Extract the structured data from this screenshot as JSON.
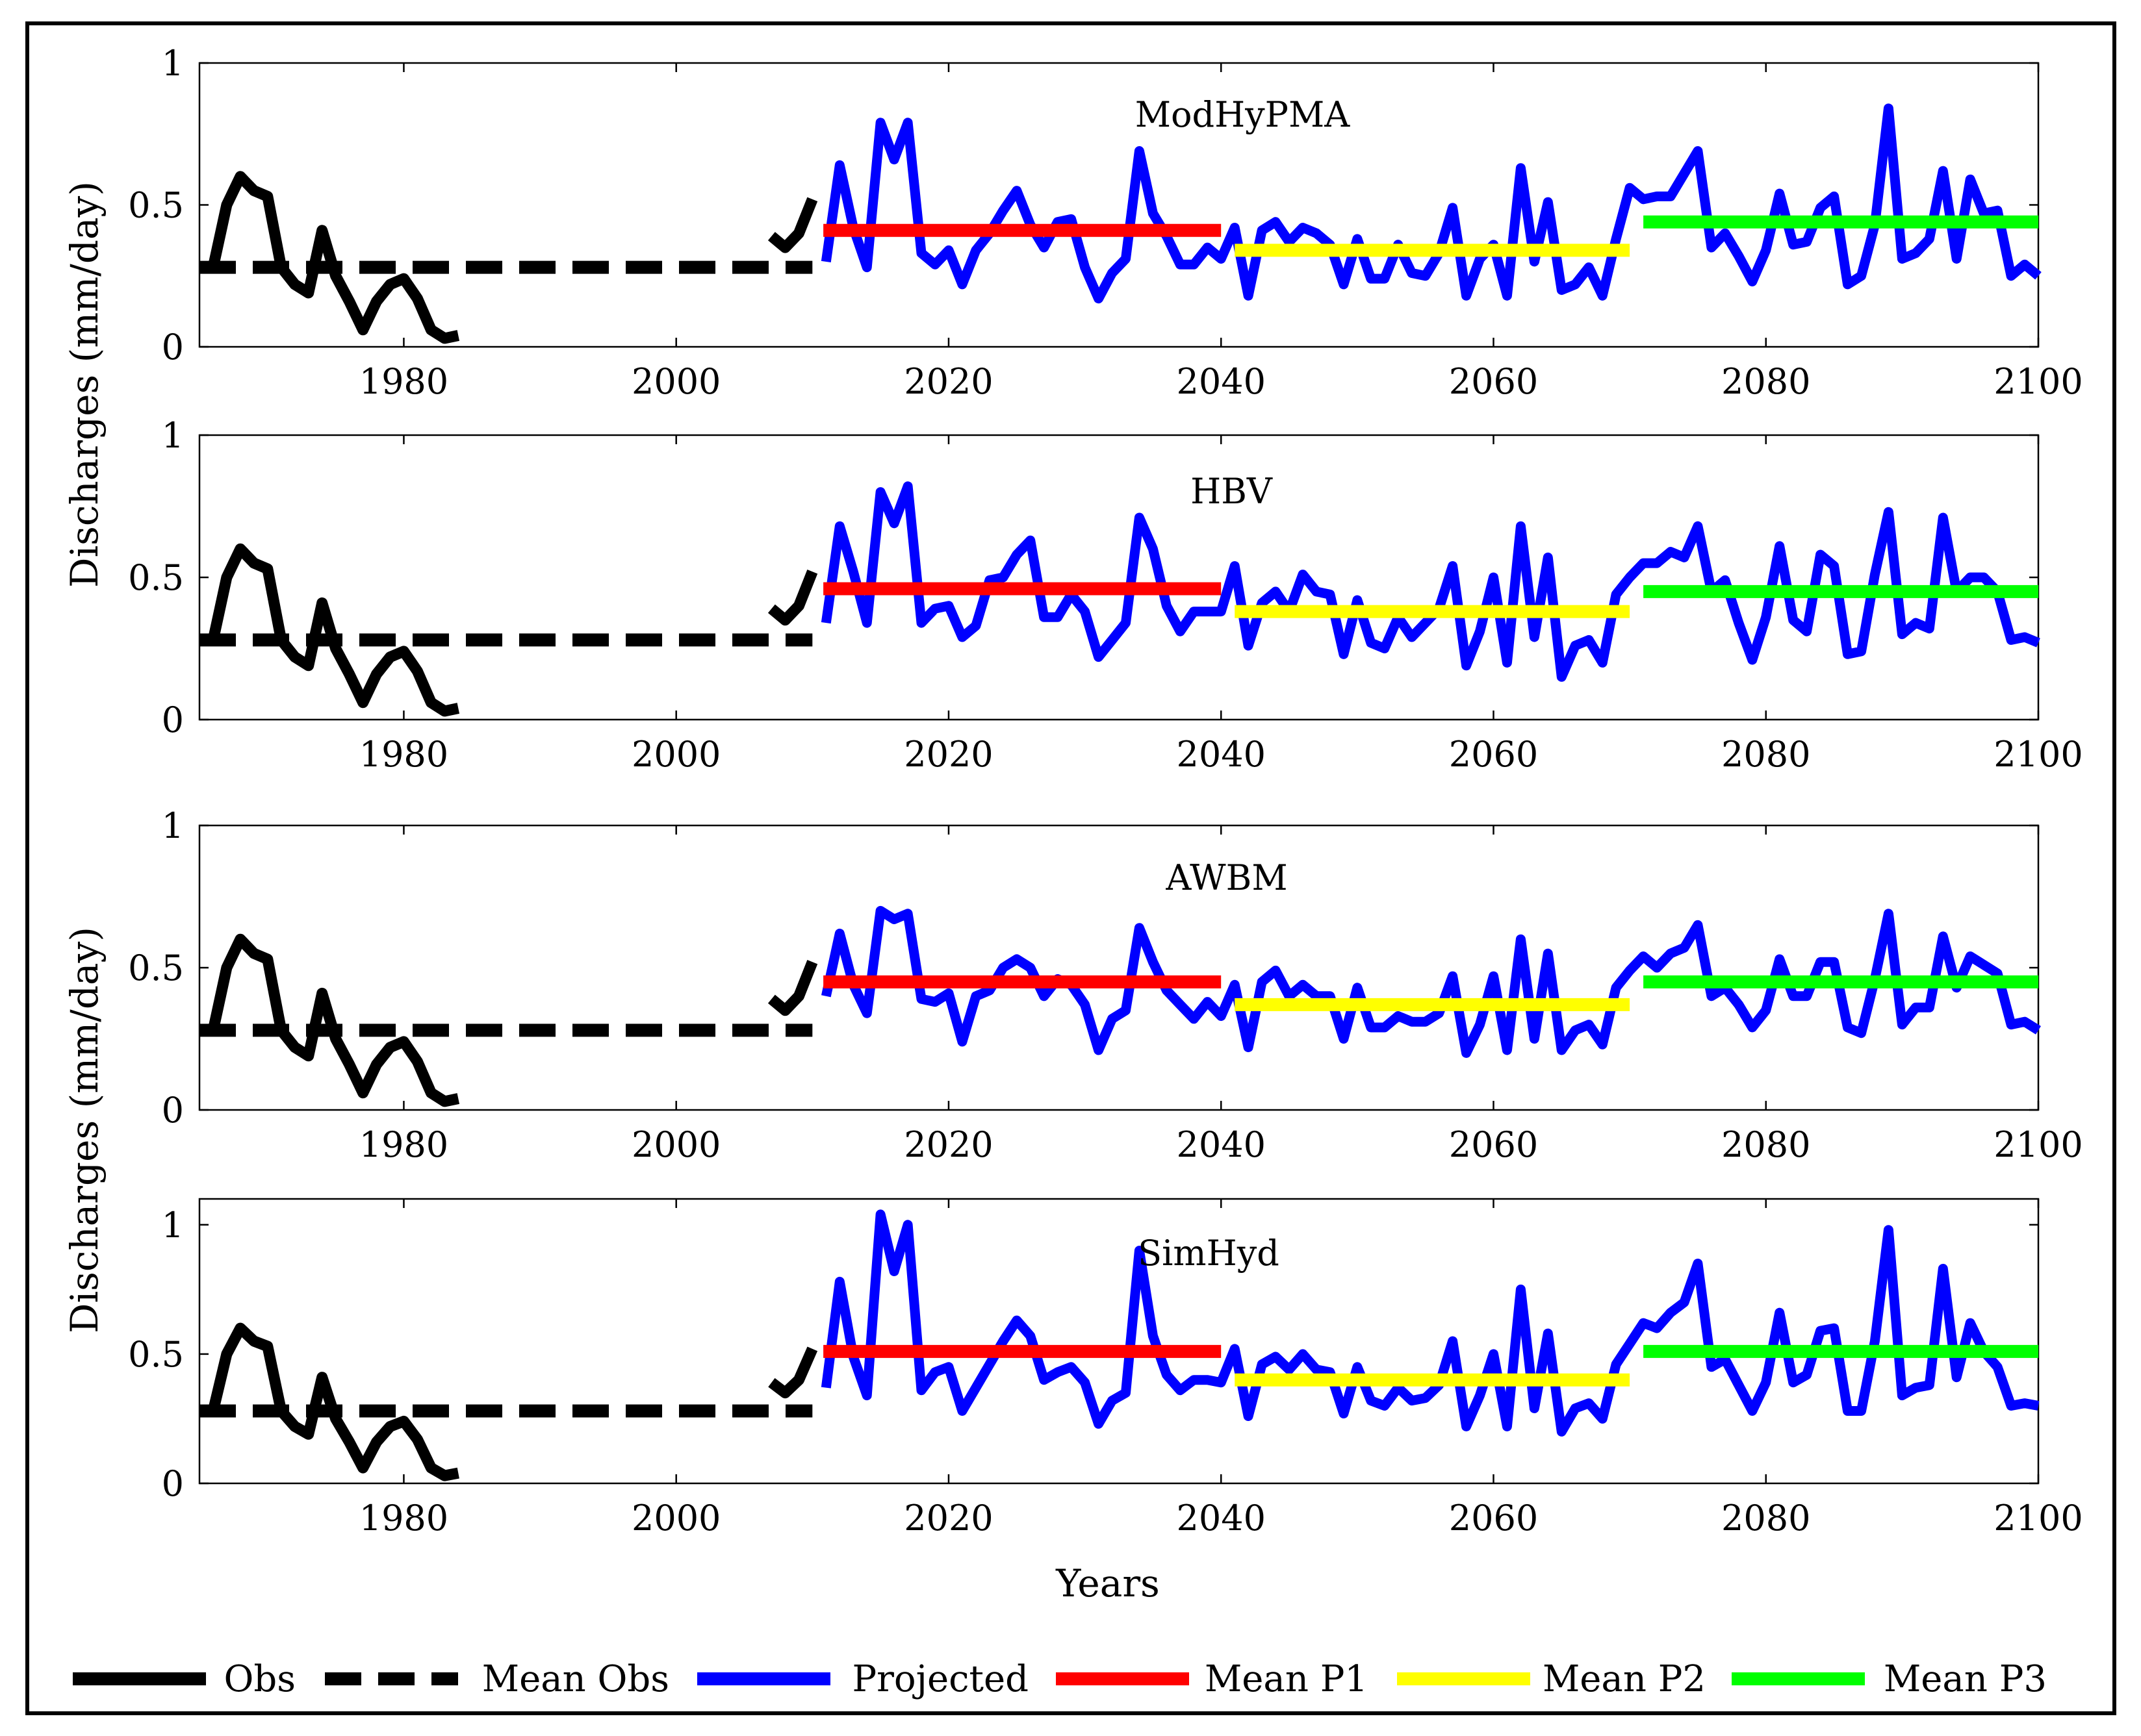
{
  "chart_data": {
    "type": "line",
    "xlabel": "Years",
    "ylabel": "Discharges (mm/day)",
    "xlim": [
      1965,
      2100
    ],
    "xticks": [
      1980,
      2000,
      2020,
      2040,
      2060,
      2080,
      2100
    ],
    "legend_position": "bottom",
    "legend": [
      {
        "key": "obs",
        "label": "Obs",
        "color": "#000000",
        "dashed": false
      },
      {
        "key": "mean_obs",
        "label": "Mean Obs",
        "color": "#000000",
        "dashed": true
      },
      {
        "key": "projected",
        "label": "Projected",
        "color": "#0000ff",
        "dashed": false
      },
      {
        "key": "mean_p1",
        "label": "Mean P1",
        "color": "#ff0000",
        "dashed": false
      },
      {
        "key": "mean_p2",
        "label": "Mean P2",
        "color": "#ffff00",
        "dashed": false
      },
      {
        "key": "mean_p3",
        "label": "Mean P3",
        "color": "#00ff00",
        "dashed": false
      }
    ],
    "observed": {
      "x": [
        1965,
        1966,
        1967,
        1968,
        1969,
        1970,
        1971,
        1972,
        1973,
        1974,
        1975,
        1976,
        1977,
        1978,
        1979,
        1980,
        1981,
        1982,
        1983,
        1984
      ],
      "values": [
        0.28,
        0.28,
        0.5,
        0.6,
        0.55,
        0.53,
        0.28,
        0.22,
        0.19,
        0.41,
        0.25,
        0.16,
        0.06,
        0.16,
        0.22,
        0.24,
        0.17,
        0.06,
        0.03,
        0.04
      ],
      "late_x": [
        2007,
        2008,
        2009,
        2010
      ],
      "late_values": [
        0.39,
        0.35,
        0.4,
        0.52
      ],
      "mean": 0.28,
      "mean_range": [
        1965,
        2010
      ]
    },
    "panels": [
      {
        "title": "ModHyPMA",
        "ylim": [
          0,
          1
        ],
        "yticks": [
          0,
          0.5,
          1
        ],
        "ytick_labels": [
          "0",
          "0.5",
          "1"
        ],
        "projected": [
          0.3,
          0.64,
          0.42,
          0.28,
          0.79,
          0.66,
          0.79,
          0.33,
          0.29,
          0.34,
          0.22,
          0.34,
          0.4,
          0.48,
          0.55,
          0.43,
          0.35,
          0.44,
          0.45,
          0.28,
          0.17,
          0.26,
          0.31,
          0.69,
          0.47,
          0.39,
          0.29,
          0.29,
          0.35,
          0.31,
          0.42,
          0.18,
          0.41,
          0.44,
          0.37,
          0.42,
          0.4,
          0.36,
          0.22,
          0.38,
          0.24,
          0.24,
          0.36,
          0.26,
          0.25,
          0.33,
          0.49,
          0.18,
          0.31,
          0.36,
          0.18,
          0.63,
          0.3,
          0.51,
          0.2,
          0.22,
          0.28,
          0.18,
          0.38,
          0.56,
          0.52,
          0.53,
          0.53,
          0.61,
          0.69,
          0.35,
          0.4,
          0.32,
          0.23,
          0.34,
          0.54,
          0.36,
          0.37,
          0.49,
          0.53,
          0.22,
          0.25,
          0.43,
          0.84,
          0.31,
          0.33,
          0.38,
          0.62,
          0.31,
          0.59,
          0.47,
          0.48,
          0.25,
          0.29,
          0.25
        ],
        "mean_p1": 0.41,
        "mean_p2": 0.34,
        "mean_p3": 0.44
      },
      {
        "title": "HBV",
        "ylim": [
          0,
          1
        ],
        "yticks": [
          0,
          0.5,
          1
        ],
        "ytick_labels": [
          "0",
          "0.5",
          "1"
        ],
        "projected": [
          0.34,
          0.68,
          0.52,
          0.34,
          0.8,
          0.69,
          0.82,
          0.34,
          0.39,
          0.4,
          0.29,
          0.33,
          0.49,
          0.5,
          0.58,
          0.63,
          0.36,
          0.36,
          0.44,
          0.38,
          0.22,
          0.28,
          0.34,
          0.71,
          0.6,
          0.4,
          0.31,
          0.38,
          0.38,
          0.38,
          0.54,
          0.26,
          0.41,
          0.45,
          0.38,
          0.51,
          0.45,
          0.44,
          0.23,
          0.42,
          0.27,
          0.25,
          0.36,
          0.29,
          0.34,
          0.39,
          0.54,
          0.19,
          0.31,
          0.5,
          0.2,
          0.68,
          0.29,
          0.57,
          0.15,
          0.26,
          0.28,
          0.2,
          0.44,
          0.5,
          0.55,
          0.55,
          0.59,
          0.57,
          0.68,
          0.45,
          0.49,
          0.34,
          0.21,
          0.36,
          0.61,
          0.35,
          0.31,
          0.58,
          0.54,
          0.23,
          0.24,
          0.51,
          0.73,
          0.3,
          0.34,
          0.32,
          0.71,
          0.45,
          0.5,
          0.5,
          0.45,
          0.28,
          0.29,
          0.27
        ],
        "mean_p1": 0.46,
        "mean_p2": 0.38,
        "mean_p3": 0.45
      },
      {
        "title": "AWBM",
        "ylim": [
          0,
          1
        ],
        "yticks": [
          0,
          0.5,
          1
        ],
        "ytick_labels": [
          "0",
          "0.5",
          "1"
        ],
        "projected": [
          0.4,
          0.62,
          0.44,
          0.34,
          0.7,
          0.67,
          0.69,
          0.39,
          0.38,
          0.41,
          0.24,
          0.4,
          0.42,
          0.5,
          0.53,
          0.5,
          0.4,
          0.46,
          0.44,
          0.37,
          0.21,
          0.32,
          0.35,
          0.64,
          0.52,
          0.42,
          0.37,
          0.32,
          0.38,
          0.33,
          0.44,
          0.22,
          0.45,
          0.49,
          0.4,
          0.44,
          0.4,
          0.4,
          0.25,
          0.43,
          0.29,
          0.29,
          0.33,
          0.31,
          0.31,
          0.34,
          0.47,
          0.2,
          0.3,
          0.47,
          0.21,
          0.6,
          0.25,
          0.55,
          0.21,
          0.28,
          0.3,
          0.23,
          0.43,
          0.49,
          0.54,
          0.5,
          0.55,
          0.57,
          0.65,
          0.4,
          0.43,
          0.37,
          0.29,
          0.35,
          0.53,
          0.4,
          0.4,
          0.52,
          0.52,
          0.29,
          0.27,
          0.46,
          0.69,
          0.3,
          0.36,
          0.36,
          0.61,
          0.43,
          0.54,
          0.51,
          0.48,
          0.3,
          0.31,
          0.28
        ],
        "mean_p1": 0.45,
        "mean_p2": 0.37,
        "mean_p3": 0.45
      },
      {
        "title": "SimHyd",
        "ylim": [
          0,
          1.1
        ],
        "yticks": [
          0,
          0.5,
          1
        ],
        "ytick_labels": [
          "0",
          "0.5",
          "1"
        ],
        "projected": [
          0.37,
          0.78,
          0.49,
          0.34,
          1.04,
          0.82,
          1.0,
          0.36,
          0.43,
          0.45,
          0.28,
          0.37,
          0.46,
          0.55,
          0.63,
          0.57,
          0.4,
          0.43,
          0.45,
          0.39,
          0.23,
          0.32,
          0.35,
          0.9,
          0.57,
          0.42,
          0.36,
          0.4,
          0.4,
          0.39,
          0.52,
          0.26,
          0.46,
          0.49,
          0.44,
          0.5,
          0.44,
          0.43,
          0.27,
          0.45,
          0.32,
          0.3,
          0.37,
          0.32,
          0.33,
          0.38,
          0.55,
          0.22,
          0.34,
          0.5,
          0.22,
          0.75,
          0.29,
          0.58,
          0.2,
          0.29,
          0.31,
          0.25,
          0.46,
          0.54,
          0.62,
          0.6,
          0.66,
          0.7,
          0.85,
          0.45,
          0.48,
          0.38,
          0.28,
          0.39,
          0.66,
          0.39,
          0.42,
          0.59,
          0.6,
          0.28,
          0.28,
          0.55,
          0.98,
          0.34,
          0.37,
          0.38,
          0.83,
          0.41,
          0.62,
          0.51,
          0.45,
          0.3,
          0.31,
          0.3
        ],
        "mean_p1": 0.51,
        "mean_p2": 0.4,
        "mean_p3": 0.51
      }
    ],
    "projected_start_year": 2011,
    "periods": {
      "p1": [
        2011,
        2040
      ],
      "p2": [
        2041,
        2070
      ],
      "p3": [
        2071,
        2100
      ]
    }
  }
}
